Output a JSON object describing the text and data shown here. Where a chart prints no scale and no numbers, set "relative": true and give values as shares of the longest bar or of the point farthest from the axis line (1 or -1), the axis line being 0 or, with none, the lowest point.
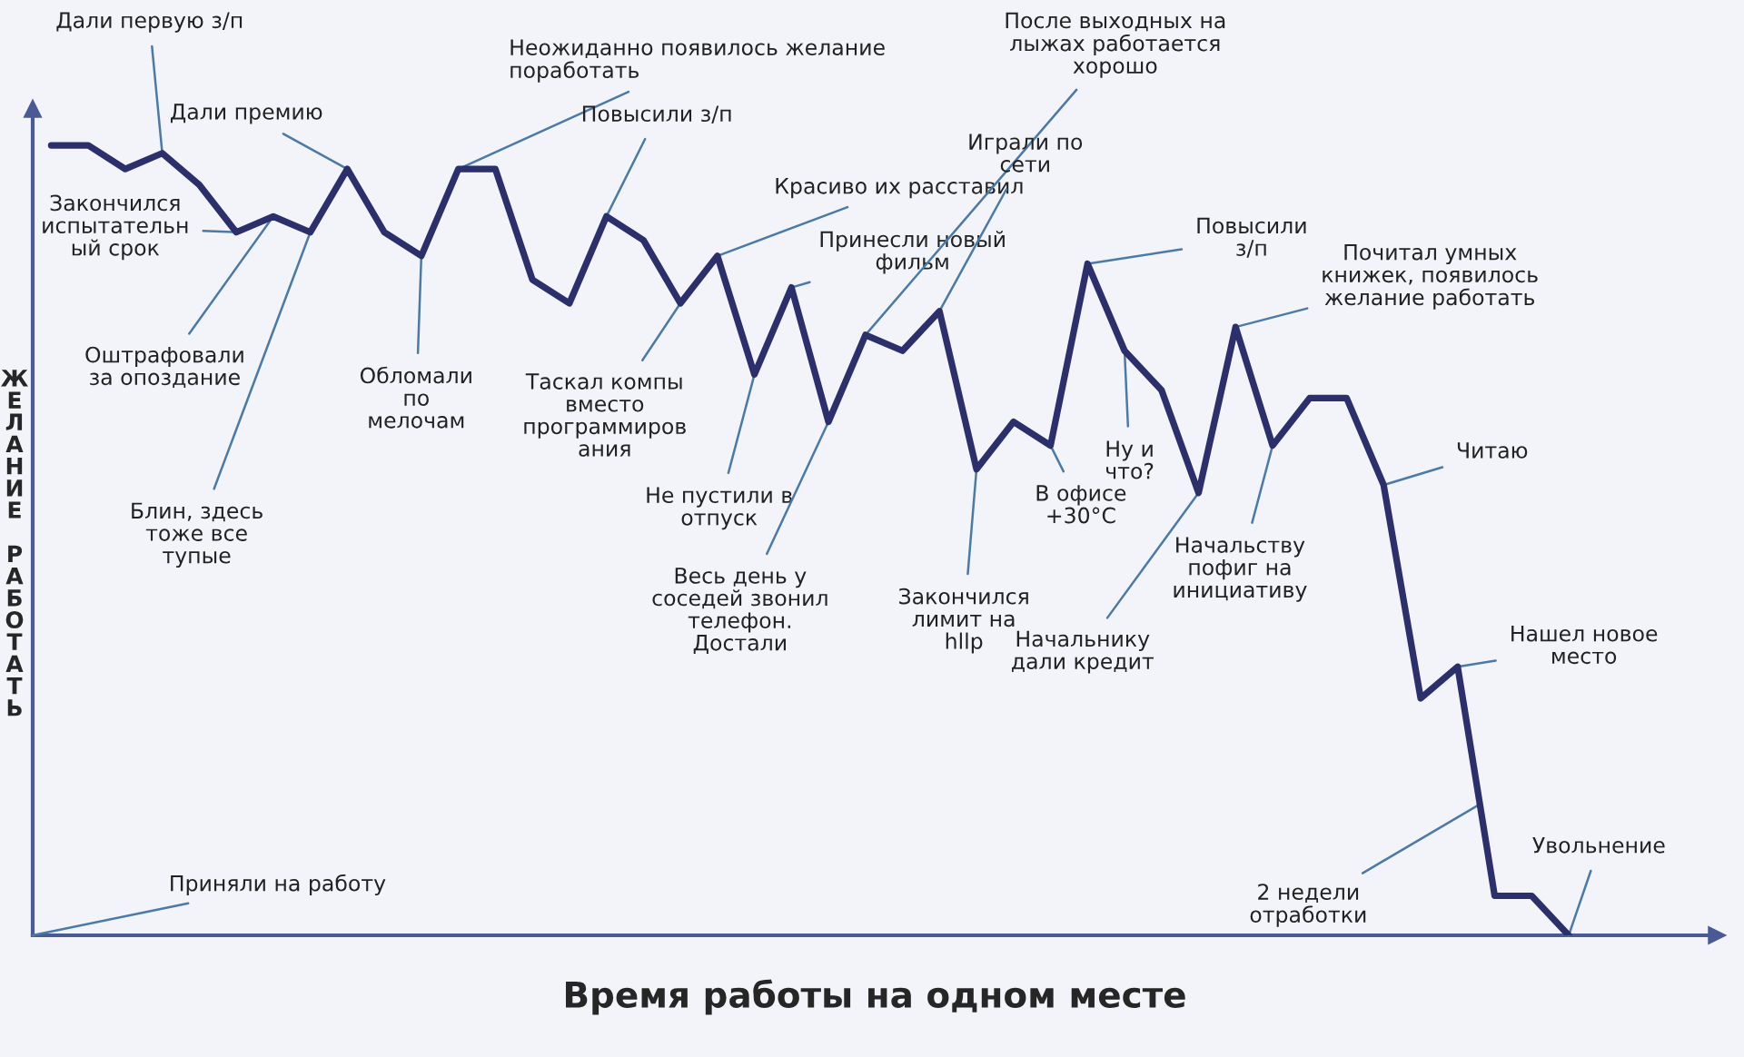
{
  "chart_data": {
    "type": "line",
    "relative": true,
    "xlabel": "Время работы на одном месте",
    "ylabel": "ЖЕЛАНИЕ РАБОТАТЬ",
    "legend": false,
    "marker": "none",
    "line_style": "solid",
    "categories": [
      null,
      null,
      null,
      null,
      null,
      null,
      null,
      null,
      null,
      null,
      null,
      null,
      null,
      null,
      null,
      null,
      null,
      null,
      null,
      null,
      null,
      null,
      null,
      null,
      null,
      null,
      null,
      null,
      null,
      null,
      null,
      null,
      null,
      null,
      null,
      null,
      null,
      null,
      null,
      null,
      null,
      null
    ],
    "series": [
      {
        "color": "#2b2f6b",
        "values": [
          1,
          1,
          0.97,
          0.99,
          0.95,
          0.89,
          0.91,
          0.89,
          0.97,
          0.89,
          0.86,
          0.97,
          0.97,
          0.83,
          0.8,
          0.91,
          0.88,
          0.8,
          0.86,
          0.71,
          0.82,
          0.65,
          0.76,
          0.74,
          0.79,
          0.59,
          0.65,
          0.62,
          0.85,
          0.74,
          0.69,
          0.56,
          0.77,
          0.62,
          0.68,
          0.68,
          0.57,
          0.3,
          0.34,
          0.05,
          0.05,
          0
        ]
      }
    ],
    "annotations": [
      "Дали первую з/п",
      "Закончился\nиспытательн\nый срок",
      "Оштрафовали\nза опоздание",
      "Блин, здесь\nтоже все\nтупые",
      "Дали премию",
      "Обломали\nпо\nмелочам",
      "Неожиданно появилось желание\nпоработать",
      "Повысили з/п",
      "Таскал компы\nвместо\nпрограммиров\nания",
      "Красиво их расставил",
      "Не пустили в\nотпуск",
      "Принесли новый\nфильм",
      "Весь день у\nсоседей звонил\nтелефон.\nДостали",
      "После выходных на\nлыжах работается\nхорошо",
      "Играли по\nсети",
      "Закончился\nлимит на\nhllp",
      "Ну и\nчто?",
      "В офисе\n+30°C",
      "Повысили\nз/п",
      "Начальнику\nдали кредит",
      "Почитал умных\nкнижек, появилось\nжелание работать",
      "Начальству\nпофиг на\nинициативу",
      "Читаю",
      "Нашел новое\nместо",
      "2 недели\nотработки",
      "Увольнение",
      "Приняли на работу"
    ]
  }
}
